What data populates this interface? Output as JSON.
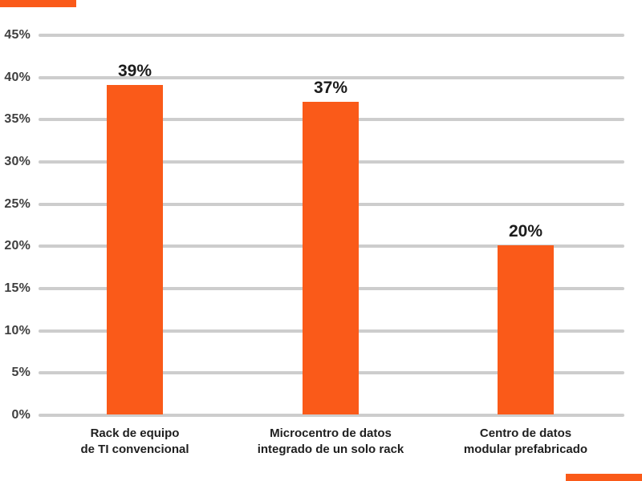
{
  "page": {
    "background_color": "#FFFFFF"
  },
  "decorations": {
    "top_left_accent_color": "#FA5A19",
    "bottom_right_accent_color": "#FA5A19"
  },
  "chart_data": {
    "type": "bar",
    "title": "",
    "xlabel": "",
    "ylabel": "",
    "categories": [
      "Rack de equipo de TI convencional",
      "Microcentro de datos integrado de un solo rack",
      "Centro de datos modular prefabricado"
    ],
    "category_lines": [
      [
        "Rack de equipo",
        "de TI convencional"
      ],
      [
        "Microcentro de datos",
        "integrado de un solo rack"
      ],
      [
        "Centro de datos",
        "modular prefabricado"
      ]
    ],
    "values": [
      39,
      37,
      20
    ],
    "value_labels": [
      "39%",
      "37%",
      "20%"
    ],
    "ylim": [
      0,
      45
    ],
    "ytick_step": 5,
    "ytick_labels": [
      "0%",
      "5%",
      "10%",
      "15%",
      "20%",
      "25%",
      "30%",
      "35%",
      "40%",
      "45%"
    ],
    "grid": "horizontal",
    "legend": "none",
    "bar_color": "#FA5A19",
    "gridline_color": "#CDCDCD",
    "tick_label_color": "#3F3F3F",
    "value_label_color": "#1C1C1C",
    "category_label_color": "#1F1F1F"
  }
}
